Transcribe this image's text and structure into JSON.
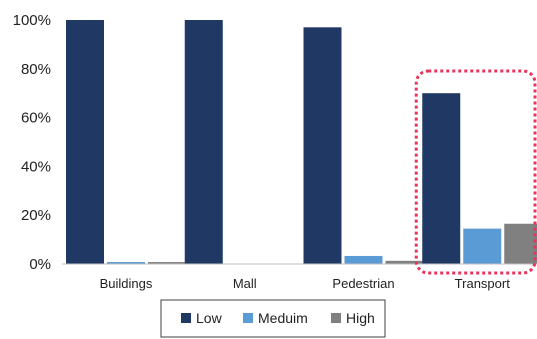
{
  "chart_data": {
    "type": "bar",
    "categories": [
      "Buildings",
      "Mall",
      "Pedestrian",
      "Transport"
    ],
    "series": [
      {
        "name": "Low",
        "values": [
          100,
          100,
          97,
          70
        ],
        "color": "#1f3864"
      },
      {
        "name": "Meduim",
        "values": [
          0.8,
          0,
          3.3,
          14.5
        ],
        "color": "#5b9bd5"
      },
      {
        "name": "High",
        "values": [
          0.8,
          0,
          1.3,
          16.5
        ],
        "color": "#808080"
      }
    ],
    "ylim": [
      0,
      100
    ],
    "yticks": [
      "0%",
      "20%",
      "40%",
      "60%",
      "80%",
      "100%"
    ],
    "highlight": {
      "category": "Transport",
      "style": "dotted-rounded-box",
      "color": "#e8335d"
    },
    "legend_position": "bottom",
    "grid": false
  }
}
